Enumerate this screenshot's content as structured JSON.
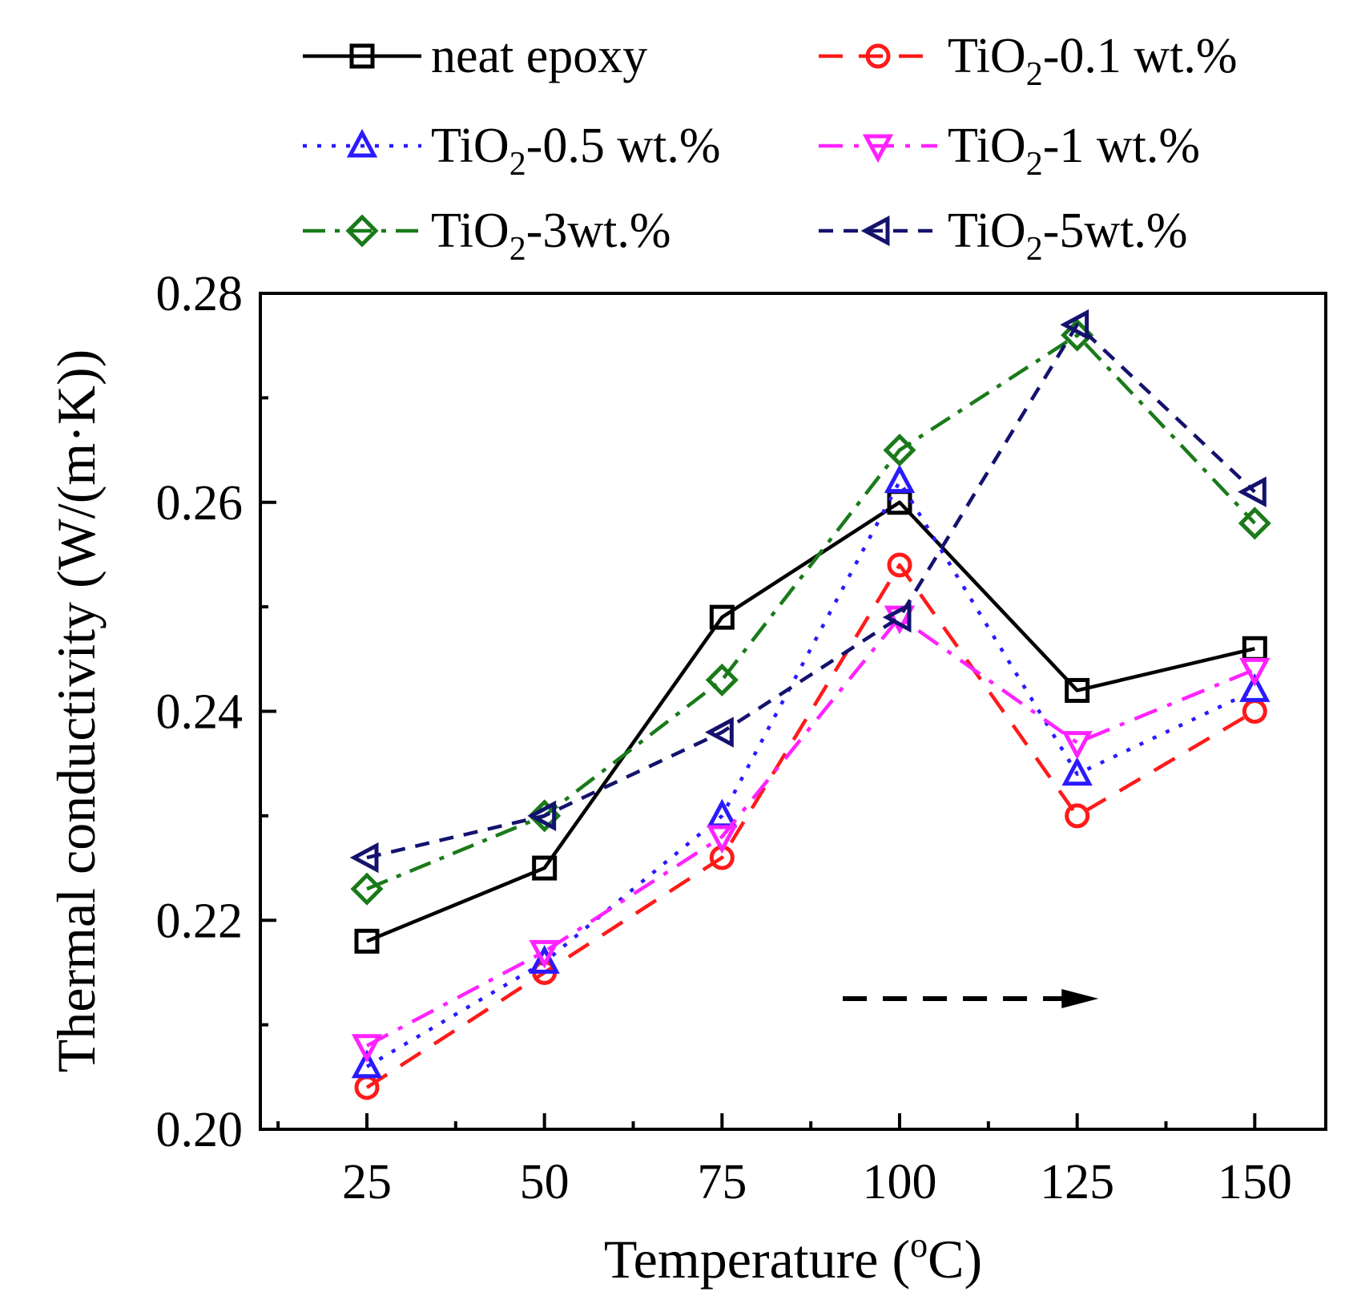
{
  "chart_data": {
    "type": "line",
    "title": "",
    "xlabel": "Temperature (oC)",
    "xlabel_parts": {
      "prefix": "Temperature (",
      "sup": "o",
      "suffix": "C)"
    },
    "ylabel": "Thermal conductivity (W/(m·K))",
    "x": [
      25,
      50,
      75,
      100,
      125,
      150
    ],
    "xticks": [
      "25",
      "50",
      "75",
      "100",
      "125",
      "150"
    ],
    "yticks": [
      "0.20",
      "0.22",
      "0.24",
      "0.26",
      "0.28"
    ],
    "xlim": [
      10,
      160
    ],
    "ylim": [
      0.2,
      0.28
    ],
    "legend_position": "top",
    "series": [
      {
        "name": "neat epoxy",
        "label_parts": {
          "prefix": "neat epoxy",
          "sub": "",
          "suffix": ""
        },
        "color": "#000000",
        "marker": "square",
        "dash": "solid",
        "values": [
          0.218,
          0.225,
          0.249,
          0.26,
          0.242,
          0.246
        ]
      },
      {
        "name": "TiO2-0.1 wt.%",
        "label_parts": {
          "prefix": "TiO",
          "sub": "2",
          "suffix": "-0.1 wt.%"
        },
        "color": "#ff1a1a",
        "marker": "circle",
        "dash": "dash",
        "values": [
          0.204,
          0.215,
          0.226,
          0.254,
          0.23,
          0.24
        ]
      },
      {
        "name": "TiO2-0.5 wt.%",
        "label_parts": {
          "prefix": "TiO",
          "sub": "2",
          "suffix": "-0.5 wt.%"
        },
        "color": "#2a1aff",
        "marker": "triangle-up",
        "dash": "dot",
        "values": [
          0.206,
          0.216,
          0.23,
          0.262,
          0.234,
          0.242
        ]
      },
      {
        "name": "TiO2-1 wt.%",
        "label_parts": {
          "prefix": "TiO",
          "sub": "2",
          "suffix": "-1 wt.%"
        },
        "color": "#ff22ff",
        "marker": "triangle-down",
        "dash": "dashdot",
        "values": [
          0.208,
          0.217,
          0.228,
          0.249,
          0.237,
          0.244
        ]
      },
      {
        "name": "TiO2-3wt.%",
        "label_parts": {
          "prefix": "TiO",
          "sub": "2",
          "suffix": "-3wt.%"
        },
        "color": "#1a7a1a",
        "marker": "diamond",
        "dash": "dashdot2",
        "values": [
          0.223,
          0.23,
          0.243,
          0.265,
          0.276,
          0.258
        ]
      },
      {
        "name": "TiO2-5wt.%",
        "label_parts": {
          "prefix": "TiO",
          "sub": "2",
          "suffix": "-5wt.%"
        },
        "color": "#14126e",
        "marker": "triangle-left",
        "dash": "shortdash",
        "values": [
          0.226,
          0.23,
          0.238,
          0.249,
          0.277,
          0.261
        ]
      }
    ],
    "annotations": [
      {
        "type": "arrow",
        "direction": "right",
        "style": "dashed",
        "x_start": 92,
        "x_end": 128,
        "y": 0.2125
      }
    ]
  }
}
